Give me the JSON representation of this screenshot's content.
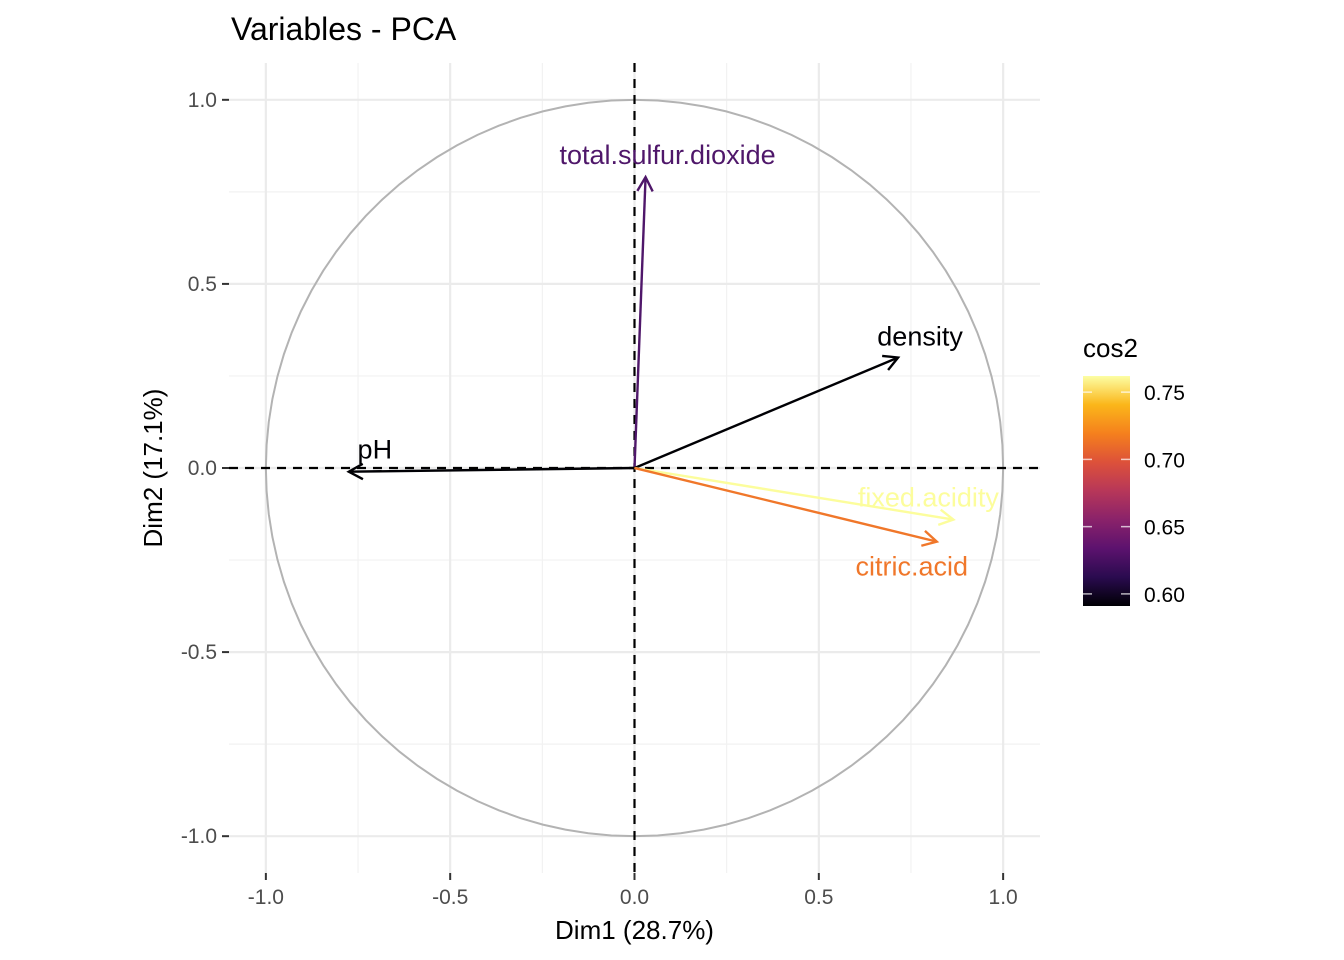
{
  "chart_data": {
    "type": "scatter",
    "subtype": "pca-variable-correlation-circle",
    "title": "Variables - PCA",
    "xlabel": "Dim1 (28.7%)",
    "ylabel": "Dim2 (17.1%)",
    "xlim": [
      -1.1,
      1.1
    ],
    "ylim": [
      -1.1,
      1.1
    ],
    "x_ticks": [
      -1.0,
      -0.5,
      0.0,
      0.5,
      1.0
    ],
    "x_tick_labels": [
      "-1.0",
      "-0.5",
      "0.0",
      "0.5",
      "1.0"
    ],
    "y_ticks": [
      -1.0,
      -0.5,
      0.0,
      0.5,
      1.0
    ],
    "y_tick_labels": [
      "-1.0",
      "-0.5",
      "0.0",
      "0.5",
      "1.0"
    ],
    "grid": true,
    "variables": [
      {
        "name": "total.sulfur.dioxide",
        "x": 0.03,
        "y": 0.79,
        "cos2": 0.625,
        "color": "#4f176a"
      },
      {
        "name": "density",
        "x": 0.715,
        "y": 0.3,
        "cos2": 0.6,
        "color": "#000004"
      },
      {
        "name": "pH",
        "x": -0.775,
        "y": -0.01,
        "cos2": 0.6,
        "color": "#000004"
      },
      {
        "name": "fixed.acidity",
        "x": 0.865,
        "y": -0.14,
        "cos2": 0.76,
        "color": "#fcfd9c"
      },
      {
        "name": "citric.acid",
        "x": 0.82,
        "y": -0.2,
        "cos2": 0.71,
        "color": "#f0772a"
      }
    ],
    "legend": {
      "title": "cos2",
      "position": "right",
      "range": [
        0.591,
        0.762
      ],
      "ticks": [
        0.6,
        0.65,
        0.7,
        0.75
      ],
      "tick_labels": [
        "0.60",
        "0.65",
        "0.70",
        "0.75"
      ],
      "gradient": [
        "#000004",
        "#2a0b4f",
        "#5c126e",
        "#8a226a",
        "#b73759",
        "#dd513a",
        "#f5801d",
        "#fbb61a",
        "#fcfea4"
      ]
    }
  }
}
